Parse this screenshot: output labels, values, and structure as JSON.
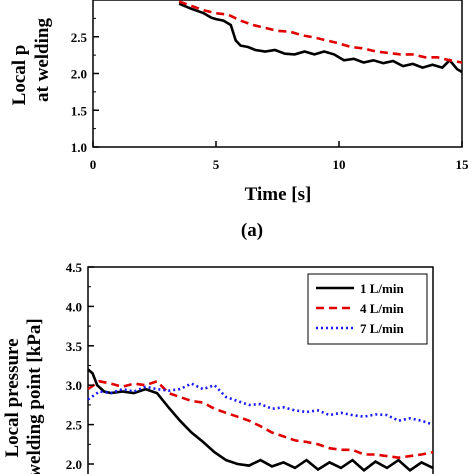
{
  "chart_data": [
    {
      "type": "line",
      "panel_label": "(a)",
      "xlabel": "Time [s]",
      "ylabel_lines": [
        "Local p",
        "at welding"
      ],
      "xlim": [
        0,
        15
      ],
      "ylim": [
        1.0,
        3.0
      ],
      "x_ticks": [
        "0",
        "5",
        "10",
        "15"
      ],
      "y_ticks": [
        "1.0",
        "1.5",
        "2.0",
        "2.5"
      ],
      "grid": false,
      "series": [
        {
          "color": "#000000",
          "dash": "solid",
          "x": [
            3.5,
            4.0,
            4.5,
            4.8,
            5.0,
            5.3,
            5.6,
            5.8,
            6.0,
            6.3,
            6.6,
            7.0,
            7.4,
            7.8,
            8.2,
            8.6,
            9.0,
            9.4,
            9.8,
            10.2,
            10.6,
            11.0,
            11.4,
            11.8,
            12.2,
            12.6,
            13.0,
            13.4,
            13.8,
            14.2,
            14.5,
            14.8,
            15.0
          ],
          "y": [
            2.95,
            2.88,
            2.82,
            2.76,
            2.74,
            2.72,
            2.66,
            2.45,
            2.38,
            2.36,
            2.32,
            2.3,
            2.32,
            2.27,
            2.26,
            2.3,
            2.26,
            2.3,
            2.26,
            2.18,
            2.2,
            2.15,
            2.18,
            2.14,
            2.17,
            2.1,
            2.13,
            2.08,
            2.12,
            2.08,
            2.18,
            2.06,
            2.02
          ]
        },
        {
          "color": "#e00000",
          "dash": "dashed",
          "x": [
            3.5,
            4.0,
            4.5,
            5.0,
            5.5,
            6.0,
            6.5,
            7.0,
            7.5,
            8.0,
            8.5,
            9.0,
            9.5,
            10.0,
            10.5,
            11.0,
            11.5,
            12.0,
            12.5,
            13.0,
            13.5,
            14.0,
            14.5,
            15.0
          ],
          "y": [
            2.98,
            2.92,
            2.86,
            2.82,
            2.8,
            2.72,
            2.66,
            2.62,
            2.58,
            2.57,
            2.52,
            2.49,
            2.45,
            2.41,
            2.36,
            2.34,
            2.3,
            2.28,
            2.26,
            2.26,
            2.22,
            2.22,
            2.18,
            2.15
          ]
        }
      ]
    },
    {
      "type": "line",
      "panel_label": "",
      "xlabel": "",
      "ylabel_lines": [
        "Local pressure",
        "welding point [kPa]"
      ],
      "xlim": [
        0,
        15
      ],
      "ylim": [
        2.0,
        4.5
      ],
      "y_ticks": [
        "4.5",
        "4.0",
        "3.5",
        "3.0",
        "2.5",
        "2.0"
      ],
      "grid": false,
      "legend_position": "top-right",
      "series": [
        {
          "name": "1 L/min",
          "color": "#000000",
          "dash": "solid",
          "x": [
            0.0,
            0.2,
            0.4,
            0.7,
            1.0,
            1.5,
            2.0,
            2.5,
            3.0,
            3.5,
            4.0,
            4.5,
            5.0,
            5.5,
            6.0,
            6.5,
            7.0,
            7.5,
            8.0,
            8.5,
            9.0,
            9.5,
            10.0,
            10.5,
            11.0,
            11.5,
            12.0,
            12.5,
            13.0,
            13.5,
            14.0,
            14.5,
            15.0
          ],
          "y": [
            3.2,
            3.15,
            3.0,
            2.92,
            2.9,
            2.92,
            2.9,
            2.95,
            2.9,
            2.72,
            2.55,
            2.4,
            2.28,
            2.15,
            2.05,
            2.0,
            1.98,
            2.05,
            1.97,
            2.02,
            1.95,
            2.05,
            1.93,
            2.02,
            1.95,
            2.05,
            1.92,
            2.03,
            1.95,
            2.05,
            1.92,
            2.02,
            1.95
          ]
        },
        {
          "name": "4 L/min",
          "color": "#e00000",
          "dash": "dashed",
          "x": [
            0.0,
            0.5,
            1.0,
            1.5,
            2.0,
            2.5,
            3.0,
            3.5,
            4.0,
            4.5,
            5.0,
            5.5,
            6.0,
            6.5,
            7.0,
            7.5,
            8.0,
            8.5,
            9.0,
            9.5,
            10.0,
            10.5,
            11.0,
            11.5,
            12.0,
            12.5,
            13.0,
            13.5,
            14.0,
            14.5,
            15.0
          ],
          "y": [
            2.95,
            3.05,
            3.02,
            2.98,
            3.02,
            3.0,
            3.05,
            2.9,
            2.85,
            2.8,
            2.78,
            2.7,
            2.65,
            2.6,
            2.55,
            2.48,
            2.4,
            2.35,
            2.3,
            2.28,
            2.25,
            2.2,
            2.18,
            2.18,
            2.12,
            2.12,
            2.1,
            2.08,
            2.1,
            2.12,
            2.15
          ]
        },
        {
          "name": "7 L/min",
          "color": "#1a1aff",
          "dash": "dotted",
          "x": [
            0.0,
            0.5,
            1.0,
            1.5,
            2.0,
            2.5,
            3.0,
            3.5,
            4.0,
            4.5,
            5.0,
            5.5,
            6.0,
            6.5,
            7.0,
            7.5,
            8.0,
            8.5,
            9.0,
            9.5,
            10.0,
            10.5,
            11.0,
            11.5,
            12.0,
            12.5,
            13.0,
            13.5,
            14.0,
            14.5,
            15.0
          ],
          "y": [
            2.82,
            2.92,
            2.9,
            2.95,
            2.92,
            2.98,
            2.95,
            2.93,
            2.95,
            3.02,
            2.95,
            3.0,
            2.85,
            2.8,
            2.75,
            2.76,
            2.7,
            2.72,
            2.68,
            2.66,
            2.68,
            2.62,
            2.65,
            2.62,
            2.6,
            2.63,
            2.62,
            2.55,
            2.58,
            2.55,
            2.5
          ]
        }
      ]
    }
  ]
}
